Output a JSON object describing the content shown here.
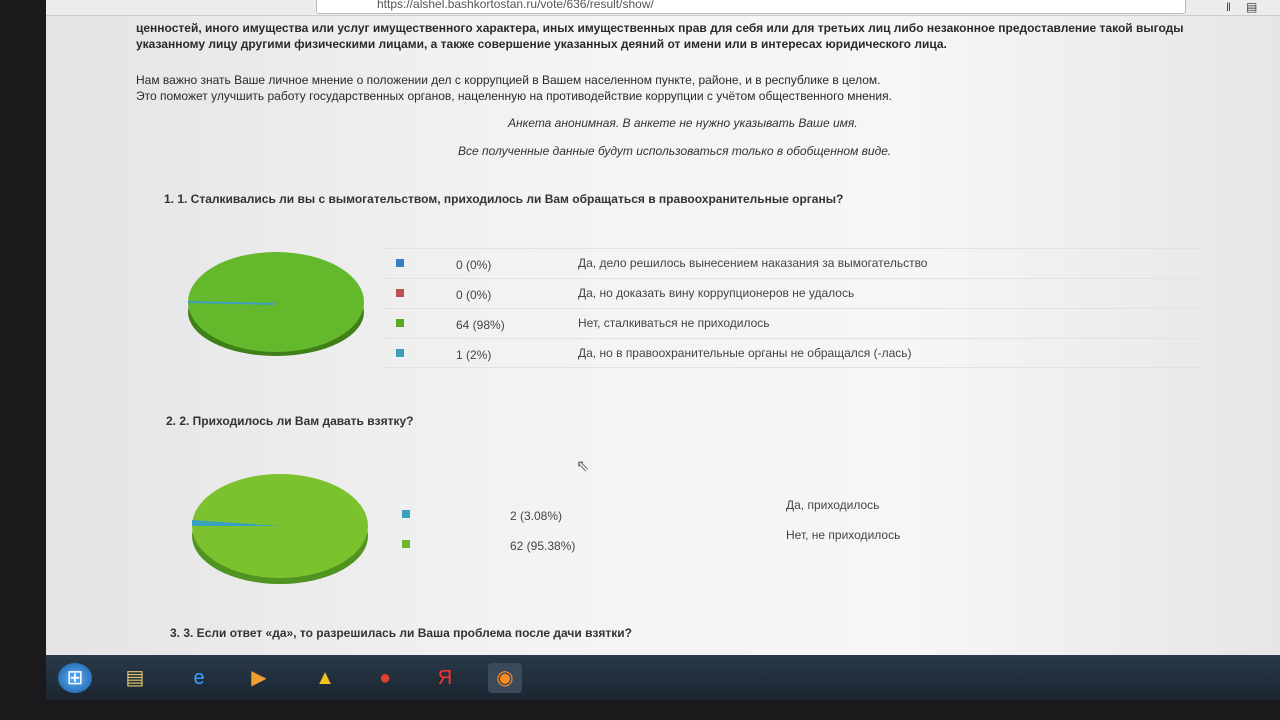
{
  "browser": {
    "url": "https://alshel.bashkortostan.ru/vote/636/result/show/"
  },
  "intro": {
    "lines": [
      "ценностей, иного имущества или услуг имущественного характера, иных имущественных прав для себя или для третьих лиц либо незаконное предоставление такой выгоды",
      "указанному лицу другими физическими лицами, а также совершение указанных деяний от имени или в интересах юридического лица."
    ],
    "lines2": [
      "Нам важно знать Ваше личное мнение о положении дел с коррупцией в Вашем населенном пункте, районе, и в республике в целом.",
      "Это поможет улучшить работу государственных органов, нацеленную на противодействие коррупции с учётом общественного мнения."
    ],
    "anon": "Анкета анонимная. В анкете не нужно указывать Ваше имя.",
    "usage": "Все полученные данные будут использоваться только в обобщенном виде."
  },
  "questions": [
    {
      "title": "1. 1. Сталкивались ли вы с вымогательством, приходилось ли Вам обращаться в правоохранительные органы?",
      "answers": [
        {
          "count": "0 (0%)",
          "label": "Да, дело решилось вынесением наказания за вымогательство",
          "color": "#3a7fc0",
          "value": 0
        },
        {
          "count": "0 (0%)",
          "label": "Да, но доказать вину коррупционеров не удалось",
          "color": "#c0504d",
          "value": 0
        },
        {
          "count": "64 (98%)",
          "label": "Нет, сталкиваться не приходилось",
          "color": "#5aaa28",
          "value": 64
        },
        {
          "count": "1 (2%)",
          "label": "Да, но в правоохранительные органы не обращался (-лась)",
          "color": "#3aa0c0",
          "value": 1
        }
      ]
    },
    {
      "title": "2. 2. Приходилось ли Вам давать взятку?",
      "answers": [
        {
          "count": "2 (3.08%)",
          "label": "Да, приходилось",
          "color": "#3aa0c0",
          "value": 2
        },
        {
          "count": "62 (95.38%)",
          "label": "Нет, не приходилось",
          "color": "#6ab82a",
          "value": 62
        }
      ]
    },
    {
      "title": "3. 3. Если ответ «да», то разрешилась ли Ваша проблема после дачи взятки?"
    }
  ]
}
